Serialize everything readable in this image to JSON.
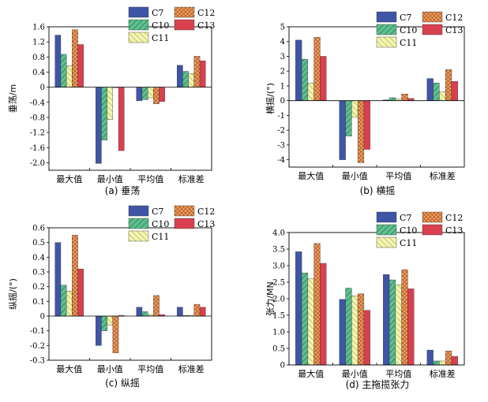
{
  "colors": {
    "C7": "#3f55a6",
    "C10": "#5fbf8f",
    "C11": "#e6e88a",
    "C12": "#ec9a5c",
    "C13": "#d9404f"
  },
  "chart_data": [
    {
      "type": "bar",
      "caption": "(a) 垂荡",
      "ylabel": "垂荡/m",
      "categories": [
        "最大值",
        "最小值",
        "平均值",
        "标准差"
      ],
      "ylim": [
        -2.2,
        1.6
      ],
      "yticks": [
        -2.0,
        -1.6,
        -1.2,
        -0.8,
        -0.4,
        0,
        0.4,
        0.8,
        1.2,
        1.6
      ],
      "ytick_labels": [
        "-2.0",
        "-1.6",
        "-1.2",
        "-0.8",
        "-0.4",
        "0",
        "0.4",
        "0.8",
        "1.2",
        "1.6"
      ],
      "series": [
        {
          "name": "C7",
          "values": [
            1.38,
            -2.02,
            -0.36,
            0.58
          ]
        },
        {
          "name": "C10",
          "values": [
            0.87,
            -1.4,
            -0.33,
            0.42
          ]
        },
        {
          "name": "C11",
          "values": [
            0.57,
            -0.86,
            -0.28,
            0.36
          ]
        },
        {
          "name": "C12",
          "values": [
            1.52,
            0,
            -0.44,
            0.82
          ]
        },
        {
          "name": "C13",
          "values": [
            1.13,
            -1.68,
            -0.38,
            0.7
          ]
        }
      ]
    },
    {
      "type": "bar",
      "caption": "(b) 横摇",
      "ylabel": "横摇/(°)",
      "categories": [
        "最大值",
        "最小值",
        "平均值",
        "标准差"
      ],
      "ylim": [
        -4.5,
        5
      ],
      "yticks": [
        -4,
        -3,
        -2,
        -1,
        0,
        1,
        2,
        3,
        4,
        5
      ],
      "ytick_labels": [
        "-4",
        "-3",
        "-2",
        "-1",
        "0",
        "1",
        "2",
        "3",
        "4",
        "5"
      ],
      "series": [
        {
          "name": "C7",
          "values": [
            4.1,
            -4.0,
            0.05,
            1.5
          ]
        },
        {
          "name": "C10",
          "values": [
            2.8,
            -2.4,
            0.2,
            1.2
          ]
        },
        {
          "name": "C11",
          "values": [
            1.2,
            -1.1,
            0.1,
            0.6
          ]
        },
        {
          "name": "C12",
          "values": [
            4.3,
            -4.2,
            0.45,
            2.1
          ]
        },
        {
          "name": "C13",
          "values": [
            3.0,
            -3.3,
            0.15,
            1.3
          ]
        }
      ]
    },
    {
      "type": "bar",
      "caption": "(c) 纵摇",
      "ylabel": "纵摇/(°)",
      "categories": [
        "最大值",
        "最小值",
        "平均值",
        "标准差"
      ],
      "ylim": [
        -0.3,
        0.6
      ],
      "yticks": [
        -0.3,
        -0.2,
        -0.1,
        0,
        0.1,
        0.2,
        0.3,
        0.4,
        0.5,
        0.6
      ],
      "ytick_labels": [
        "-0.3",
        "-0.2",
        "-0.1",
        "0",
        "0.1",
        "0.2",
        "0.3",
        "0.4",
        "0.5",
        "0.6"
      ],
      "series": [
        {
          "name": "C7",
          "values": [
            0.5,
            -0.2,
            0.06,
            0.06
          ]
        },
        {
          "name": "C10",
          "values": [
            0.21,
            -0.1,
            0.03,
            0.005
          ]
        },
        {
          "name": "C11",
          "values": [
            0.17,
            -0.06,
            0.01,
            0.005
          ]
        },
        {
          "name": "C12",
          "values": [
            0.55,
            -0.25,
            0.14,
            0.08
          ]
        },
        {
          "name": "C13",
          "values": [
            0.32,
            0.005,
            0.01,
            0.06
          ]
        }
      ]
    },
    {
      "type": "bar",
      "caption": "(d) 主拖揽张力",
      "ylabel": "张力/MN",
      "categories": [
        "最大值",
        "最小值",
        "平均值",
        "标准差"
      ],
      "ylim": [
        0,
        4.0
      ],
      "yticks": [
        0,
        0.5,
        1.0,
        1.5,
        2.0,
        2.5,
        3.0,
        3.5,
        4.0
      ],
      "ytick_labels": [
        "0",
        "0.5",
        "1.0",
        "1.5",
        "2.0",
        "2.5",
        "3.0",
        "3.5",
        "4.0"
      ],
      "series": [
        {
          "name": "C7",
          "values": [
            3.42,
            1.98,
            2.73,
            0.45
          ]
        },
        {
          "name": "C10",
          "values": [
            2.78,
            2.32,
            2.57,
            0.12
          ]
        },
        {
          "name": "C11",
          "values": [
            2.6,
            2.09,
            2.42,
            0.12
          ]
        },
        {
          "name": "C12",
          "values": [
            3.67,
            2.15,
            2.88,
            0.42
          ]
        },
        {
          "name": "C13",
          "values": [
            3.07,
            1.65,
            2.3,
            0.26
          ]
        }
      ]
    }
  ]
}
